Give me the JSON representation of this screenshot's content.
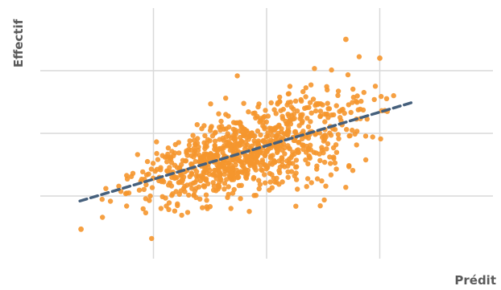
{
  "chart_data": {
    "type": "scatter",
    "title": "",
    "xlabel": "Prédit",
    "ylabel": "Effectif",
    "grid": true,
    "xlim": [
      0,
      4
    ],
    "ylim": [
      0,
      4
    ],
    "colors": {
      "points": "#f5962e",
      "trend_line": "#46607c",
      "grid": "#d9d9d9",
      "axis_text": "#5a5a5a"
    },
    "trend_line": {
      "style": "dashed",
      "x": [
        0.35,
        3.3
      ],
      "y": [
        0.92,
        2.5
      ]
    },
    "series": [
      {
        "kind": "points",
        "n": 900,
        "x_range": [
          0.35,
          3.3
        ],
        "slope": 0.535,
        "intercept": 0.73
      },
      {
        "kind": "outliers",
        "x": [
          0.36,
          1.3,
          3.0,
          2.7,
          1.75,
          1.45
        ],
        "y": [
          0.47,
          1.65,
          3.2,
          3.5,
          1.3,
          1.15
        ]
      }
    ]
  }
}
